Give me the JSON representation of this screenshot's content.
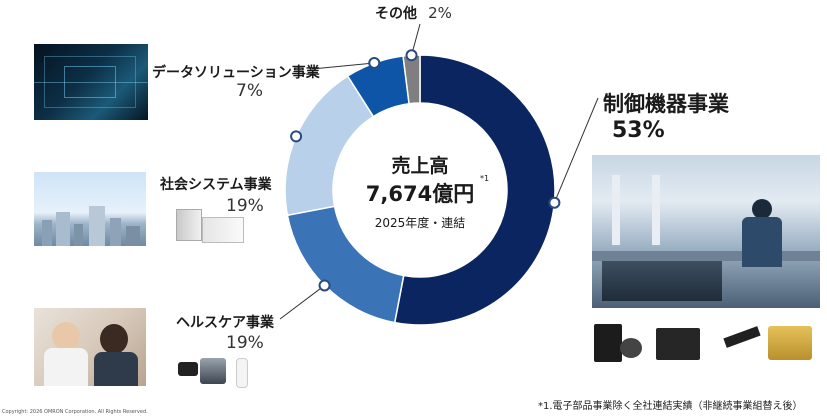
{
  "chart_data": {
    "type": "pie",
    "style": "donut",
    "categories": [
      "制御機器事業",
      "ヘルスケア事業",
      "社会システム事業",
      "データソリューション事業",
      "その他"
    ],
    "values": [
      53,
      19,
      19,
      7,
      2
    ],
    "value_labels": [
      "53%",
      "19%",
      "19%",
      "7%",
      "2%"
    ],
    "colors": [
      "#0b2560",
      "#3a73b6",
      "#b8d0ea",
      "#0e55a8",
      "#7f7f7f"
    ],
    "center": {
      "title": "売上高",
      "amount": "7,674億円",
      "footnote_mark": "*1",
      "sub": "2025年度・連結"
    }
  },
  "footnote": "*1.電子部品事業除く全社連結実績（非継続事業組替え後）",
  "copyright": "Copyright: 2026 OMRON Corporation. All Rights Reserved."
}
